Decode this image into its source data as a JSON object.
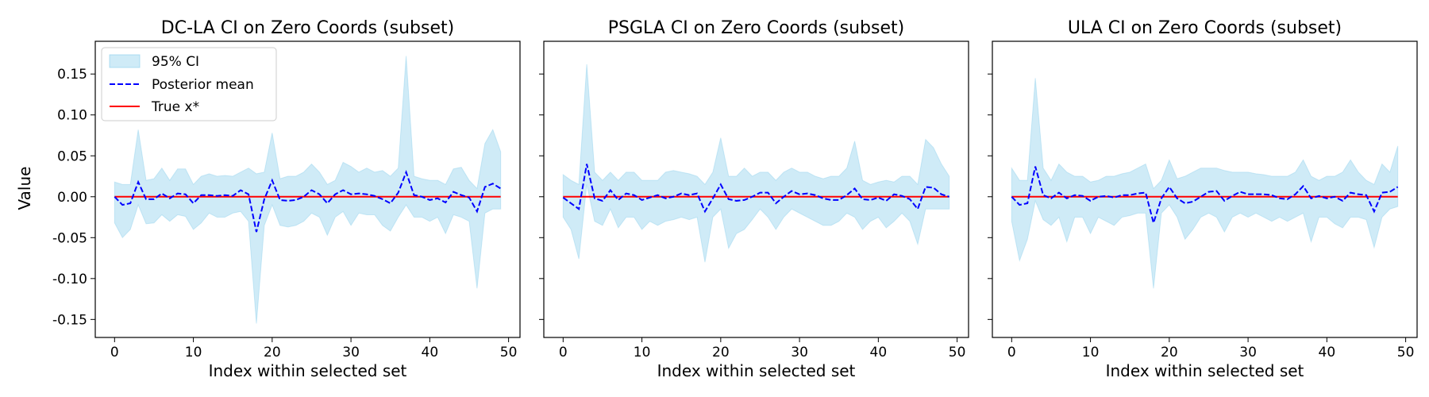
{
  "shared": {
    "ylabel": "Value",
    "xlabel": "Index within selected set",
    "xlim": [
      -2.45,
      51.45
    ],
    "ylim": [
      -0.172,
      0.19
    ],
    "xticks": [
      0,
      10,
      20,
      30,
      40,
      50
    ],
    "yticks": [
      "0.15",
      "0.10",
      "0.05",
      "0.00",
      "-0.05",
      "-0.10",
      "-0.15"
    ],
    "ytick_values": [
      0.15,
      0.1,
      0.05,
      0.0,
      -0.05,
      -0.1,
      -0.15
    ],
    "legend": {
      "position": "top-left",
      "ci_label": "95% CI",
      "mean_label": "Posterior mean",
      "true_label": "True x*"
    },
    "colors": {
      "ci_fill": "#87ceeb",
      "mean": "#0000ff",
      "true": "#ff0000"
    }
  },
  "chart_data": [
    {
      "type": "line",
      "title": "DC-LA CI on Zero Coords (subset)",
      "x_start": 0,
      "mean": [
        0.0,
        -0.01,
        -0.008,
        0.018,
        -0.003,
        -0.003,
        0.004,
        -0.002,
        0.004,
        0.003,
        -0.008,
        0.002,
        0.002,
        0.001,
        0.002,
        0.001,
        0.008,
        0.003,
        -0.043,
        -0.003,
        0.02,
        -0.004,
        -0.005,
        -0.004,
        0.0,
        0.008,
        0.003,
        -0.008,
        0.003,
        0.008,
        0.003,
        0.004,
        0.003,
        0.001,
        -0.003,
        -0.008,
        0.005,
        0.03,
        0.002,
        0.0,
        -0.004,
        -0.002,
        -0.007,
        0.006,
        0.002,
        -0.001,
        -0.018,
        0.012,
        0.016,
        0.01
      ],
      "upper": [
        0.018,
        0.015,
        0.015,
        0.082,
        0.02,
        0.022,
        0.035,
        0.02,
        0.034,
        0.034,
        0.015,
        0.025,
        0.028,
        0.025,
        0.026,
        0.025,
        0.03,
        0.035,
        0.028,
        0.03,
        0.078,
        0.022,
        0.025,
        0.025,
        0.03,
        0.04,
        0.03,
        0.015,
        0.02,
        0.042,
        0.037,
        0.03,
        0.035,
        0.03,
        0.032,
        0.025,
        0.035,
        0.172,
        0.025,
        0.022,
        0.02,
        0.02,
        0.015,
        0.034,
        0.036,
        0.02,
        0.01,
        0.065,
        0.082,
        0.055
      ],
      "lower": [
        -0.032,
        -0.05,
        -0.04,
        -0.01,
        -0.033,
        -0.032,
        -0.022,
        -0.03,
        -0.022,
        -0.024,
        -0.04,
        -0.032,
        -0.02,
        -0.025,
        -0.025,
        -0.02,
        -0.018,
        -0.03,
        -0.155,
        -0.035,
        -0.01,
        -0.035,
        -0.037,
        -0.035,
        -0.03,
        -0.02,
        -0.025,
        -0.047,
        -0.025,
        -0.018,
        -0.035,
        -0.02,
        -0.022,
        -0.022,
        -0.035,
        -0.042,
        -0.025,
        -0.01,
        -0.025,
        -0.025,
        -0.03,
        -0.025,
        -0.045,
        -0.022,
        -0.025,
        -0.03,
        -0.112,
        -0.02,
        -0.015,
        -0.015
      ]
    },
    {
      "type": "line",
      "title": "PSGLA CI on Zero Coords (subset)",
      "x_start": 0,
      "mean": [
        -0.001,
        -0.008,
        -0.015,
        0.04,
        -0.002,
        -0.005,
        0.008,
        -0.004,
        0.004,
        0.002,
        -0.004,
        -0.001,
        0.002,
        -0.002,
        0.0,
        0.004,
        0.002,
        0.004,
        -0.018,
        -0.002,
        0.015,
        -0.003,
        -0.005,
        -0.004,
        0.0,
        0.005,
        0.005,
        -0.008,
        0.0,
        0.007,
        0.003,
        0.004,
        0.002,
        -0.002,
        -0.004,
        -0.004,
        0.002,
        0.01,
        -0.003,
        -0.004,
        -0.001,
        -0.005,
        0.003,
        0.001,
        -0.003,
        -0.015,
        0.012,
        0.011,
        0.003,
        0.0
      ],
      "upper": [
        0.027,
        0.02,
        0.015,
        0.162,
        0.03,
        0.02,
        0.03,
        0.02,
        0.03,
        0.03,
        0.02,
        0.02,
        0.02,
        0.03,
        0.032,
        0.03,
        0.028,
        0.025,
        0.015,
        0.03,
        0.072,
        0.025,
        0.025,
        0.035,
        0.025,
        0.03,
        0.03,
        0.02,
        0.03,
        0.035,
        0.03,
        0.03,
        0.025,
        0.022,
        0.025,
        0.025,
        0.035,
        0.068,
        0.02,
        0.015,
        0.018,
        0.02,
        0.018,
        0.025,
        0.025,
        0.015,
        0.07,
        0.06,
        0.04,
        0.025
      ],
      "lower": [
        -0.025,
        -0.04,
        -0.076,
        0.015,
        -0.03,
        -0.035,
        -0.015,
        -0.038,
        -0.025,
        -0.025,
        -0.04,
        -0.03,
        -0.035,
        -0.03,
        -0.028,
        -0.025,
        -0.028,
        -0.025,
        -0.08,
        -0.025,
        -0.015,
        -0.063,
        -0.045,
        -0.04,
        -0.028,
        -0.015,
        -0.025,
        -0.04,
        -0.025,
        -0.015,
        -0.02,
        -0.025,
        -0.03,
        -0.035,
        -0.035,
        -0.03,
        -0.02,
        -0.025,
        -0.04,
        -0.03,
        -0.025,
        -0.038,
        -0.03,
        -0.02,
        -0.03,
        -0.058,
        -0.015,
        -0.015,
        -0.015,
        -0.015
      ]
    },
    {
      "type": "line",
      "title": "ULA CI on Zero Coords (subset)",
      "x_start": 0,
      "mean": [
        0.0,
        -0.01,
        -0.008,
        0.037,
        0.002,
        -0.002,
        0.005,
        -0.002,
        0.002,
        0.001,
        -0.005,
        0.0,
        0.001,
        -0.001,
        0.002,
        0.002,
        0.004,
        0.005,
        -0.032,
        -0.002,
        0.012,
        -0.002,
        -0.008,
        -0.006,
        0.0,
        0.006,
        0.007,
        -0.005,
        0.001,
        0.006,
        0.003,
        0.003,
        0.003,
        0.002,
        -0.002,
        -0.003,
        0.003,
        0.013,
        -0.002,
        0.001,
        -0.002,
        0.0,
        -0.005,
        0.005,
        0.003,
        0.002,
        -0.018,
        0.005,
        0.006,
        0.012
      ],
      "upper": [
        0.035,
        0.02,
        0.02,
        0.145,
        0.035,
        0.02,
        0.04,
        0.03,
        0.025,
        0.025,
        0.018,
        0.02,
        0.025,
        0.025,
        0.028,
        0.03,
        0.035,
        0.04,
        0.01,
        0.02,
        0.045,
        0.022,
        0.025,
        0.03,
        0.035,
        0.035,
        0.035,
        0.032,
        0.03,
        0.03,
        0.03,
        0.028,
        0.027,
        0.025,
        0.025,
        0.025,
        0.03,
        0.045,
        0.025,
        0.02,
        0.025,
        0.025,
        0.03,
        0.045,
        0.03,
        0.02,
        0.015,
        0.04,
        0.03,
        0.062
      ],
      "lower": [
        -0.03,
        -0.078,
        -0.052,
        -0.005,
        -0.028,
        -0.035,
        -0.025,
        -0.055,
        -0.025,
        -0.025,
        -0.045,
        -0.025,
        -0.03,
        -0.035,
        -0.025,
        -0.023,
        -0.02,
        -0.02,
        -0.112,
        -0.02,
        -0.01,
        -0.025,
        -0.052,
        -0.04,
        -0.025,
        -0.02,
        -0.025,
        -0.043,
        -0.025,
        -0.02,
        -0.025,
        -0.02,
        -0.025,
        -0.03,
        -0.025,
        -0.03,
        -0.025,
        -0.02,
        -0.055,
        -0.025,
        -0.025,
        -0.033,
        -0.038,
        -0.025,
        -0.025,
        -0.028,
        -0.062,
        -0.025,
        -0.015,
        -0.012
      ]
    }
  ]
}
